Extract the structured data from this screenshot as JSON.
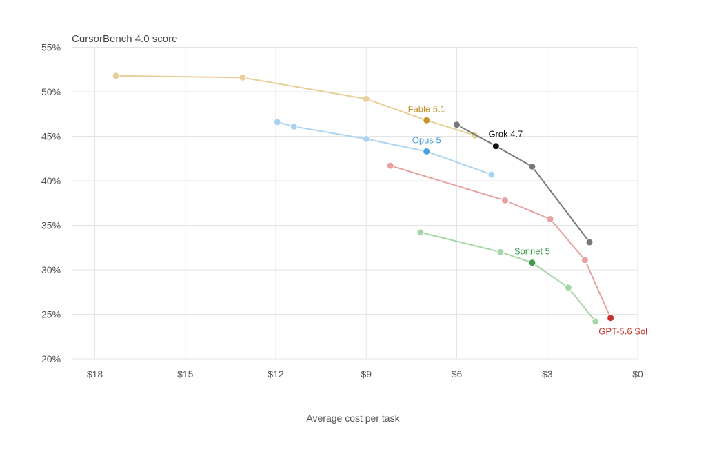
{
  "chart_data": {
    "type": "scatter",
    "title": "CursorBench 4.0 score",
    "xlabel": "Average cost per task",
    "ylabel": "",
    "xlim": [
      0,
      18.75
    ],
    "ylim": [
      20,
      55
    ],
    "x_reversed": true,
    "grid": true,
    "x_ticks": [
      {
        "value": 18,
        "label": "$18"
      },
      {
        "value": 15,
        "label": "$15"
      },
      {
        "value": 12,
        "label": "$12"
      },
      {
        "value": 9,
        "label": "$9"
      },
      {
        "value": 6,
        "label": "$6"
      },
      {
        "value": 3,
        "label": "$3"
      },
      {
        "value": 0,
        "label": "$0"
      }
    ],
    "y_ticks": [
      {
        "value": 55,
        "label": "55%"
      },
      {
        "value": 50,
        "label": "50%"
      },
      {
        "value": 45,
        "label": "45%"
      },
      {
        "value": 40,
        "label": "40%"
      },
      {
        "value": 35,
        "label": "35%"
      },
      {
        "value": 30,
        "label": "30%"
      },
      {
        "value": 25,
        "label": "25%"
      },
      {
        "value": 20,
        "label": "20%"
      }
    ],
    "series": [
      {
        "name": "Fable 5.1",
        "color": "#e8cf98",
        "highlight_color": "#c8922e",
        "label_color": "#c8922e",
        "highlight_index": 3,
        "x": [
          17.3,
          13.1,
          9.0,
          7.0,
          5.4
        ],
        "y": [
          51.8,
          51.6,
          49.2,
          46.8,
          45.1
        ]
      },
      {
        "name": "Opus 5",
        "color": "#a9d4ef",
        "highlight_color": "#4a9fdc",
        "label_color": "#4a9fdc",
        "highlight_index": 3,
        "x": [
          11.95,
          11.4,
          9.0,
          7.0,
          4.85
        ],
        "y": [
          46.6,
          46.1,
          44.7,
          43.3,
          40.7
        ]
      },
      {
        "name": "Grok 4.7",
        "color": "#777777",
        "highlight_color": "#111111",
        "label_color": "#111111",
        "highlight_index": 1,
        "x": [
          6.0,
          4.7,
          3.5,
          1.6
        ],
        "y": [
          46.3,
          43.9,
          41.6,
          33.1
        ]
      },
      {
        "name": "GPT-5.6 Sol",
        "color": "#e8a1a1",
        "highlight_color": "#c8312e",
        "label_color": "#c8312e",
        "highlight_index": 4,
        "x": [
          8.2,
          4.4,
          2.9,
          1.75,
          0.9
        ],
        "y": [
          41.7,
          37.8,
          35.7,
          31.1,
          24.6
        ]
      },
      {
        "name": "Sonnet 5",
        "color": "#a6d6a6",
        "highlight_color": "#3f9a4c",
        "label_color": "#3f9a4c",
        "highlight_index": 2,
        "x": [
          7.2,
          4.55,
          3.5,
          2.3,
          1.4
        ],
        "y": [
          34.2,
          32.0,
          30.8,
          28.0,
          24.2
        ]
      }
    ]
  }
}
